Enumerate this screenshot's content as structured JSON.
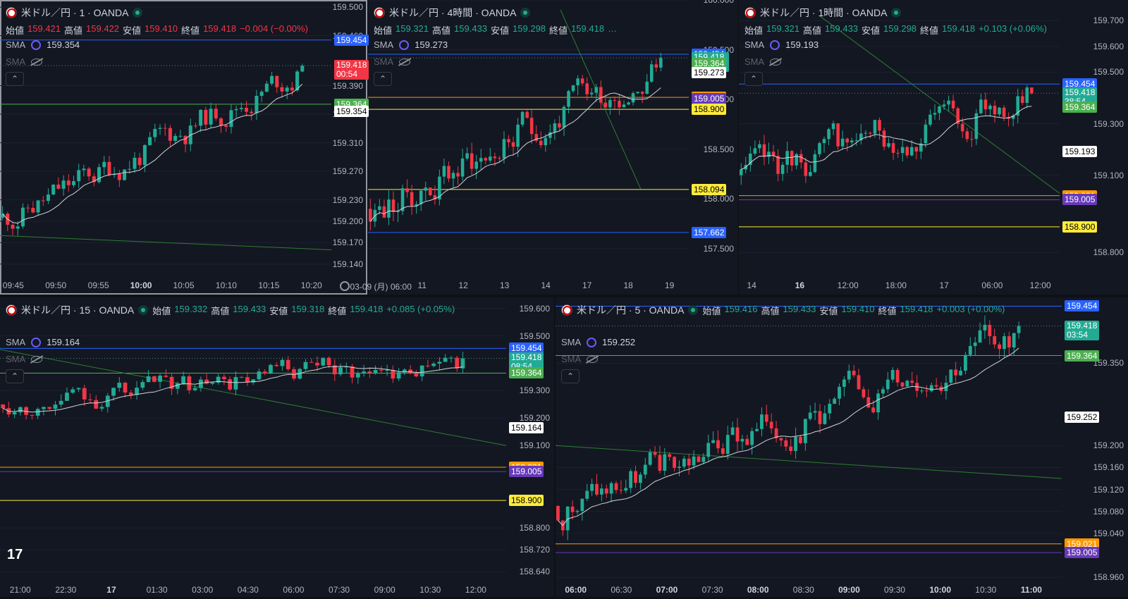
{
  "colors": {
    "up": "#22ab94",
    "down": "#f23645",
    "sma": "#d1d4dc",
    "blue": "#2962ff",
    "green": "#4caf50",
    "orange": "#ff9800",
    "purple": "#673ab7",
    "yellow": "#ffeb3b",
    "white": "#ffffff"
  },
  "labels": {
    "open": "始値",
    "high": "高値",
    "low": "安値",
    "close": "終値",
    "sma": "SMA"
  },
  "panes": [
    {
      "id": "p1m",
      "active": true,
      "title": "米ドル／円 · 1 · OANDA",
      "ohlc": {
        "o": "159.421",
        "h": "159.422",
        "l": "159.410",
        "c": "159.418",
        "chg": "−0.004 (−0.00%)",
        "dir": "dn"
      },
      "sma1": "159.354",
      "price_ticks": [
        "159.500",
        "159.460",
        "159.390",
        "159.350",
        "159.310",
        "159.270",
        "159.230",
        "159.200",
        "159.170",
        "159.140"
      ],
      "price_scale": {
        "min": 159.12,
        "max": 159.51
      },
      "time_ticks": [
        {
          "t": "09:45",
          "b": false
        },
        {
          "t": "09:50",
          "b": false
        },
        {
          "t": "09:55",
          "b": false
        },
        {
          "t": "10:00",
          "b": true
        },
        {
          "t": "10:05",
          "b": false
        },
        {
          "t": "10:10",
          "b": false
        },
        {
          "t": "10:15",
          "b": false
        },
        {
          "t": "10:20",
          "b": false
        }
      ],
      "tags": [
        {
          "v": 159.454,
          "text": "159.454",
          "c": "blue"
        },
        {
          "v": 159.418,
          "text": "159.418",
          "sub": "00:54",
          "c": "down"
        },
        {
          "v": 159.364,
          "text": "159.364",
          "c": "green"
        },
        {
          "v": 159.354,
          "text": "159.354",
          "c": "white"
        }
      ],
      "hlines": [
        {
          "v": 159.454,
          "c": "blue"
        },
        {
          "v": 159.364,
          "c": "green"
        }
      ],
      "trend": [
        [
          0,
          159.18
        ],
        [
          1,
          159.16
        ]
      ],
      "seed": 11,
      "n": 60,
      "start": 159.205,
      "end": 159.418,
      "range": [
        159.18,
        159.44
      ]
    },
    {
      "id": "p4h",
      "active": false,
      "title": "米ドル／円 · 4時間 · OANDA",
      "ohlc": {
        "o": "159.321",
        "h": "159.433",
        "l": "159.298",
        "c": "159.418",
        "chg": "…",
        "dir": "up"
      },
      "sma1": "159.273",
      "price_ticks": [
        "160.000",
        "159.500",
        "159.000",
        "158.500",
        "158.000",
        "157.500"
      ],
      "price_scale": {
        "min": 157.2,
        "max": 160.0
      },
      "time_ticks": [
        {
          "t": "03-09 (月)  06:00",
          "b": false
        },
        {
          "t": "11",
          "b": false
        },
        {
          "t": "12",
          "b": false
        },
        {
          "t": "13",
          "b": false
        },
        {
          "t": "14",
          "b": false
        },
        {
          "t": "17",
          "b": false
        },
        {
          "t": "18",
          "b": false
        },
        {
          "t": "19",
          "b": false
        }
      ],
      "tags": [
        {
          "v": 159.454,
          "text": "159.454",
          "c": "blue"
        },
        {
          "v": 159.418,
          "text": "159.418",
          "sub": "03:38:54",
          "c": "up"
        },
        {
          "v": 159.364,
          "text": "159.364",
          "c": "green"
        },
        {
          "v": 159.273,
          "text": "159.273",
          "c": "white"
        },
        {
          "v": 159.021,
          "text": "159.021",
          "c": "orange"
        },
        {
          "v": 159.005,
          "text": "159.005",
          "c": "purple"
        },
        {
          "v": 158.9,
          "text": "158.900",
          "c": "yellow"
        },
        {
          "v": 158.094,
          "text": "158.094",
          "c": "yellow"
        },
        {
          "v": 157.662,
          "text": "157.662",
          "c": "blue"
        }
      ],
      "hlines": [
        {
          "v": 159.454,
          "c": "blue"
        },
        {
          "v": 159.021,
          "c": "orange"
        },
        {
          "v": 158.9,
          "c": "yellow"
        },
        {
          "v": 158.094,
          "c": "yellow"
        },
        {
          "v": 157.662,
          "c": "blue"
        }
      ],
      "trend": [
        [
          0.6,
          159.9
        ],
        [
          0.85,
          158.1
        ]
      ],
      "seed": 23,
      "n": 64,
      "start": 157.9,
      "end": 159.418,
      "range": [
        157.45,
        159.85
      ]
    },
    {
      "id": "p1h",
      "active": false,
      "title": "米ドル／円 · 1時間 · OANDA",
      "ohlc": {
        "o": "159.321",
        "h": "159.433",
        "l": "159.298",
        "c": "159.418",
        "chg": "+0.103 (+0.06%)",
        "dir": "up"
      },
      "sma1": "159.193",
      "price_ticks": [
        "159.700",
        "159.600",
        "159.500",
        "159.300",
        "159.100",
        "158.800"
      ],
      "price_scale": {
        "min": 158.7,
        "max": 159.78
      },
      "time_ticks": [
        {
          "t": "14",
          "b": false
        },
        {
          "t": "16",
          "b": true
        },
        {
          "t": "12:00",
          "b": false
        },
        {
          "t": "18:00",
          "b": false
        },
        {
          "t": "17",
          "b": false
        },
        {
          "t": "06:00",
          "b": false
        },
        {
          "t": "12:00",
          "b": false
        }
      ],
      "tags": [
        {
          "v": 159.454,
          "text": "159.454",
          "c": "blue"
        },
        {
          "v": 159.418,
          "text": "159.418",
          "sub": "38:54",
          "c": "up"
        },
        {
          "v": 159.364,
          "text": "159.364",
          "c": "green"
        },
        {
          "v": 159.193,
          "text": "159.193",
          "c": "white"
        },
        {
          "v": 159.021,
          "text": "159.021",
          "c": "orange"
        },
        {
          "v": 159.005,
          "text": "159.005",
          "c": "purple"
        },
        {
          "v": 158.9,
          "text": "158.900",
          "c": "yellow"
        }
      ],
      "hlines": [
        {
          "v": 159.454,
          "c": "blue"
        },
        {
          "v": 159.021,
          "c": "orange"
        },
        {
          "v": 159.005,
          "c": "purple"
        },
        {
          "v": 158.9,
          "c": "yellow"
        }
      ],
      "trend": [
        [
          0.25,
          159.72
        ],
        [
          1,
          159.03
        ]
      ],
      "seed": 37,
      "n": 64,
      "start": 159.1,
      "end": 159.418,
      "range": [
        158.88,
        159.72
      ]
    },
    {
      "id": "p15m",
      "active": false,
      "title": "米ドル／円 · 15 · OANDA",
      "ohlc": {
        "o": "159.332",
        "h": "159.433",
        "l": "159.318",
        "c": "159.418",
        "chg": "+0.085 (+0.05%)",
        "dir": "up"
      },
      "sma1": "159.164",
      "price_ticks": [
        "159.600",
        "159.500",
        "159.300",
        "159.200",
        "159.100",
        "158.800",
        "158.720",
        "158.640"
      ],
      "price_scale": {
        "min": 158.6,
        "max": 159.64
      },
      "time_ticks": [
        {
          "t": "21:00",
          "b": false
        },
        {
          "t": "22:30",
          "b": false
        },
        {
          "t": "17",
          "b": true
        },
        {
          "t": "01:30",
          "b": false
        },
        {
          "t": "03:00",
          "b": false
        },
        {
          "t": "04:30",
          "b": false
        },
        {
          "t": "06:00",
          "b": false
        },
        {
          "t": "07:30",
          "b": false
        },
        {
          "t": "09:00",
          "b": false
        },
        {
          "t": "10:30",
          "b": false
        },
        {
          "t": "12:00",
          "b": false
        }
      ],
      "tags": [
        {
          "v": 159.454,
          "text": "159.454",
          "c": "blue"
        },
        {
          "v": 159.418,
          "text": "159.418",
          "sub": "08:54",
          "c": "up"
        },
        {
          "v": 159.364,
          "text": "159.364",
          "c": "green"
        },
        {
          "v": 159.164,
          "text": "159.164",
          "c": "white"
        },
        {
          "v": 159.021,
          "text": "159.021",
          "c": "orange"
        },
        {
          "v": 159.005,
          "text": "159.005",
          "c": "purple"
        },
        {
          "v": 158.9,
          "text": "158.900",
          "c": "yellow"
        }
      ],
      "hlines": [
        {
          "v": 159.454,
          "c": "blue"
        },
        {
          "v": 159.364,
          "c": "green"
        },
        {
          "v": 159.021,
          "c": "orange"
        },
        {
          "v": 159.005,
          "c": "purple"
        },
        {
          "v": 158.9,
          "c": "yellow"
        }
      ],
      "trend": [
        [
          0,
          159.45
        ],
        [
          1,
          159.1
        ]
      ],
      "seed": 53,
      "n": 80,
      "start": 159.25,
      "end": 159.418,
      "range": [
        158.88,
        159.42
      ]
    },
    {
      "id": "p5m",
      "active": false,
      "title": "米ドル／円 · 5 · OANDA",
      "ohlc": {
        "o": "159.416",
        "h": "159.433",
        "l": "159.410",
        "c": "159.418",
        "chg": "+0.003 (+0.00%)",
        "dir": "up"
      },
      "sma1": "159.252",
      "price_ticks": [
        "159.350",
        "159.200",
        "159.160",
        "159.120",
        "159.080",
        "159.040",
        "158.960"
      ],
      "price_scale": {
        "min": 158.95,
        "max": 159.47
      },
      "time_ticks": [
        {
          "t": "06:00",
          "b": true
        },
        {
          "t": "06:30",
          "b": false
        },
        {
          "t": "07:00",
          "b": true
        },
        {
          "t": "07:30",
          "b": false
        },
        {
          "t": "08:00",
          "b": true
        },
        {
          "t": "08:30",
          "b": false
        },
        {
          "t": "09:00",
          "b": true
        },
        {
          "t": "09:30",
          "b": false
        },
        {
          "t": "10:00",
          "b": true
        },
        {
          "t": "10:30",
          "b": false
        },
        {
          "t": "11:00",
          "b": true
        }
      ],
      "tags": [
        {
          "v": 159.454,
          "text": "159.454",
          "c": "blue"
        },
        {
          "v": 159.418,
          "text": "159.418",
          "sub": "03:54",
          "c": "up"
        },
        {
          "v": 159.364,
          "text": "159.364",
          "c": "green"
        },
        {
          "v": 159.252,
          "text": "159.252",
          "c": "white"
        },
        {
          "v": 159.021,
          "text": "159.021",
          "c": "orange"
        },
        {
          "v": 159.005,
          "text": "159.005",
          "c": "purple"
        }
      ],
      "hlines": [
        {
          "v": 159.454,
          "c": "blue"
        },
        {
          "v": 159.364,
          "c": "green"
        },
        {
          "v": 159.021,
          "c": "orange"
        },
        {
          "v": 159.005,
          "c": "purple"
        }
      ],
      "trend": [
        [
          0,
          159.2
        ],
        [
          1,
          159.14
        ]
      ],
      "seed": 71,
      "n": 96,
      "start": 159.09,
      "end": 159.418,
      "range": [
        159.02,
        159.42
      ]
    }
  ],
  "logo": "17"
}
